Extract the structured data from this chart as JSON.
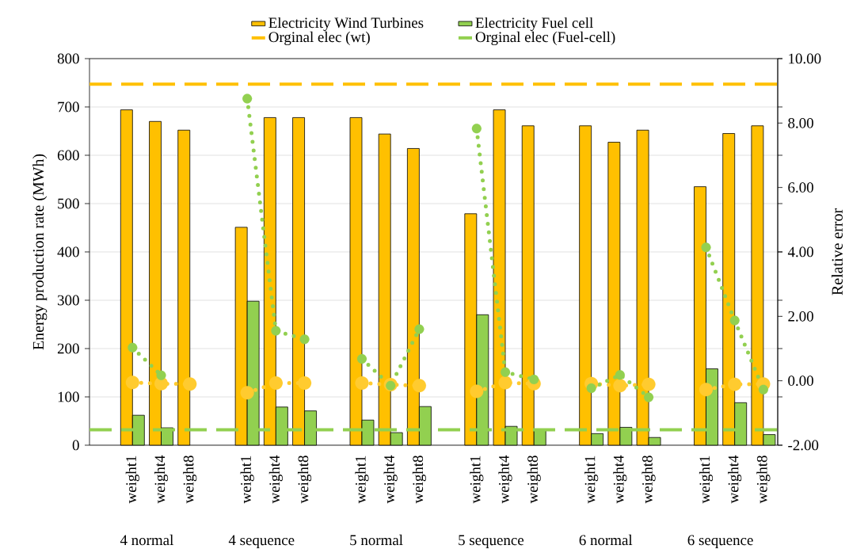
{
  "chart_data": {
    "type": "bar",
    "categories": [
      null,
      "weight1",
      "weight4",
      "weight8",
      null,
      "weight1",
      "weight4",
      "weight8",
      null,
      "weight1",
      "weight4",
      "weight8",
      null,
      "weight1",
      "weight4",
      "weight8",
      null,
      "weight1",
      "weight4",
      "weight8",
      null,
      "weight1",
      "weight4",
      "weight8"
    ],
    "series": [
      {
        "name": "Electricity Wind Turbines",
        "color": "#ffc000",
        "values": [
          null,
          694,
          670,
          652,
          null,
          451,
          678,
          678,
          null,
          678,
          644,
          614,
          null,
          479,
          694,
          661,
          null,
          661,
          627,
          652,
          null,
          535,
          645,
          661
        ]
      },
      {
        "name": "Electricity Fuel cell",
        "color": "#92d050",
        "values": [
          null,
          62,
          36,
          null,
          null,
          298,
          79,
          71,
          null,
          52,
          26,
          80,
          null,
          270,
          39,
          33,
          null,
          24,
          37,
          16,
          null,
          158,
          88,
          22
        ]
      },
      {
        "type": "line",
        "axis": "y2",
        "color": "#ffcb2f",
        "values": [
          null,
          -0.05,
          -0.09,
          -0.1,
          null,
          -0.37,
          -0.07,
          -0.07,
          null,
          -0.07,
          -0.12,
          -0.15,
          null,
          -0.33,
          -0.06,
          -0.09,
          null,
          -0.09,
          -0.15,
          -0.11,
          null,
          -0.27,
          -0.11,
          -0.1
        ]
      },
      {
        "type": "line",
        "axis": "y2",
        "color": "#92d050",
        "values": [
          null,
          1.03,
          0.17,
          null,
          null,
          8.76,
          1.55,
          1.29,
          null,
          0.68,
          -0.15,
          1.6,
          null,
          7.83,
          0.27,
          0.04,
          null,
          -0.23,
          0.18,
          -0.51,
          null,
          4.14,
          1.87,
          -0.27
        ]
      }
    ],
    "ylabel": "Energy production rate (MWh)",
    "y2label": "Relative error",
    "ylim": [
      0,
      800
    ],
    "yticks": [
      0,
      100,
      200,
      300,
      400,
      500,
      600,
      700,
      800
    ],
    "y2lim": [
      -2,
      10
    ],
    "y2ticks": [
      {
        "value": -2,
        "label": "-2.00"
      },
      {
        "value": 0,
        "label": "0.00"
      },
      {
        "value": 2,
        "label": "2.00"
      },
      {
        "value": 4,
        "label": "4.00"
      },
      {
        "value": 6,
        "label": "6.00"
      },
      {
        "value": 8,
        "label": "8.00"
      },
      {
        "value": 10,
        "label": "10.00"
      }
    ],
    "ref_lines": [
      {
        "axis": "y",
        "value": 747,
        "label": "Orginal elec (wt)",
        "color": "#ffc000",
        "line_style": "dashed"
      },
      {
        "axis": "y",
        "value": 32,
        "label": "Orginal elec (Fuel-cell)",
        "color": "#92d050",
        "line_style": "dashed"
      }
    ],
    "annotations": [
      "4 normal",
      "4 sequence",
      "5 normal",
      "5 sequence",
      "6 normal",
      "6 sequence"
    ],
    "grid": "y",
    "legend": "top",
    "marker": "circle",
    "line_style": "dotted"
  }
}
